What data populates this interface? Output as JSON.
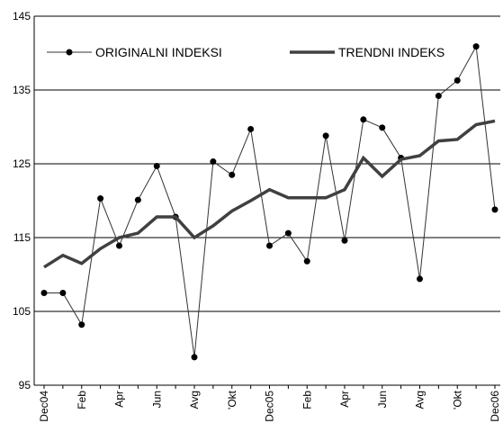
{
  "chart_data": {
    "type": "line",
    "categories": [
      "Dec04",
      null,
      "Feb",
      null,
      "Apr",
      null,
      "Jun",
      null,
      "Avg",
      null,
      "'Okt",
      null,
      "Dec05",
      null,
      "Feb",
      null,
      "Apr",
      null,
      "Jun",
      null,
      "Avg",
      null,
      "'Okt",
      null,
      "Dec06"
    ],
    "series": [
      {
        "name": "ORIGINALNI INDEKSI",
        "color": "#333333",
        "marker": true,
        "values": [
          107.5,
          107.5,
          103.2,
          120.3,
          113.9,
          120.1,
          124.7,
          117.8,
          98.8,
          125.3,
          123.5,
          129.7,
          113.9,
          115.6,
          111.8,
          128.8,
          114.6,
          131.0,
          129.9,
          125.8,
          109.4,
          134.2,
          136.3,
          140.9,
          118.8
        ]
      },
      {
        "name": "TRENDNI INDEKS",
        "color": "#404040",
        "marker": false,
        "values": [
          111.0,
          112.6,
          111.5,
          113.5,
          115.0,
          115.6,
          117.8,
          117.8,
          115.0,
          116.6,
          118.6,
          120.0,
          121.5,
          120.4,
          120.4,
          120.4,
          121.5,
          125.8,
          123.3,
          125.6,
          126.1,
          128.1,
          128.3,
          130.3,
          130.8
        ]
      }
    ],
    "ylim": [
      95,
      145
    ],
    "yticks": [
      95,
      105,
      115,
      125,
      135,
      145
    ],
    "grid": true,
    "legend": "top"
  }
}
